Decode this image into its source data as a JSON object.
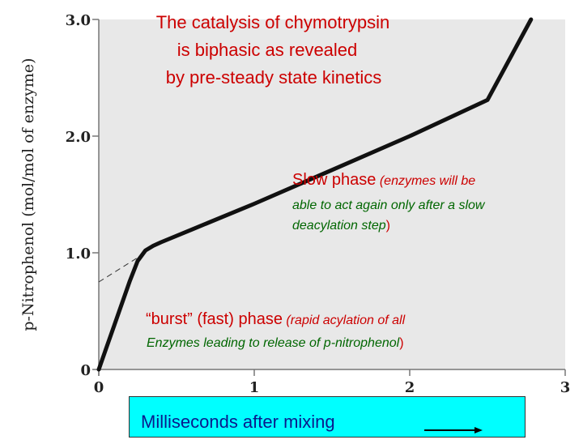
{
  "chart_data": {
    "type": "line",
    "title_lines": [
      "The catalysis of chymotrypsin",
      "is biphasic as revealed",
      "by pre-steady state kinetics"
    ],
    "ylabel": "p-Nitrophenol (mol/mol of enzyme)",
    "xlabel": "Milliseconds after mixing",
    "xlim": [
      0,
      3
    ],
    "ylim": [
      0,
      3
    ],
    "x_ticks": [
      0,
      1,
      2,
      3
    ],
    "x_tick_labels": [
      "0",
      "1",
      "2",
      "3"
    ],
    "y_ticks": [
      0,
      1,
      2,
      3
    ],
    "y_tick_labels": [
      "0",
      "1.0",
      "2.0",
      "3.0"
    ],
    "series": [
      {
        "x": [
          0,
          0.05,
          0.1,
          0.15,
          0.2,
          0.25,
          0.3,
          0.35,
          0.4,
          0.6,
          1.0,
          1.5,
          2.0,
          2.5,
          2.78
        ],
        "y": [
          0,
          0.19,
          0.38,
          0.57,
          0.76,
          0.93,
          1.02,
          1.06,
          1.09,
          1.2,
          1.42,
          1.71,
          2.0,
          2.31,
          3.0
        ]
      }
    ],
    "extrapolation": {
      "x": [
        0,
        0.3
      ],
      "y": [
        0.75,
        1.0
      ]
    },
    "annotations": {
      "slow_big": "Slow phase",
      "slow_small_open": " (enzymes will be",
      "slow_green_1": "able to act again only after a slow",
      "slow_green_2": "deacylation step",
      "slow_close": ")",
      "burst_big": "“burst” (fast) phase",
      "burst_small_open": " (rapid acylation of all",
      "burst_green": "Enzymes leading to release of p-nitrophenol",
      "burst_close": ")"
    },
    "grid": false,
    "colors": {
      "plot_bg": "#e8e8e8",
      "line": "#111111",
      "annotation_red": "#cc0000",
      "annotation_green": "#006600",
      "xlabel_box": "#00ffff",
      "xlabel_text": "#0a1a8c"
    }
  }
}
